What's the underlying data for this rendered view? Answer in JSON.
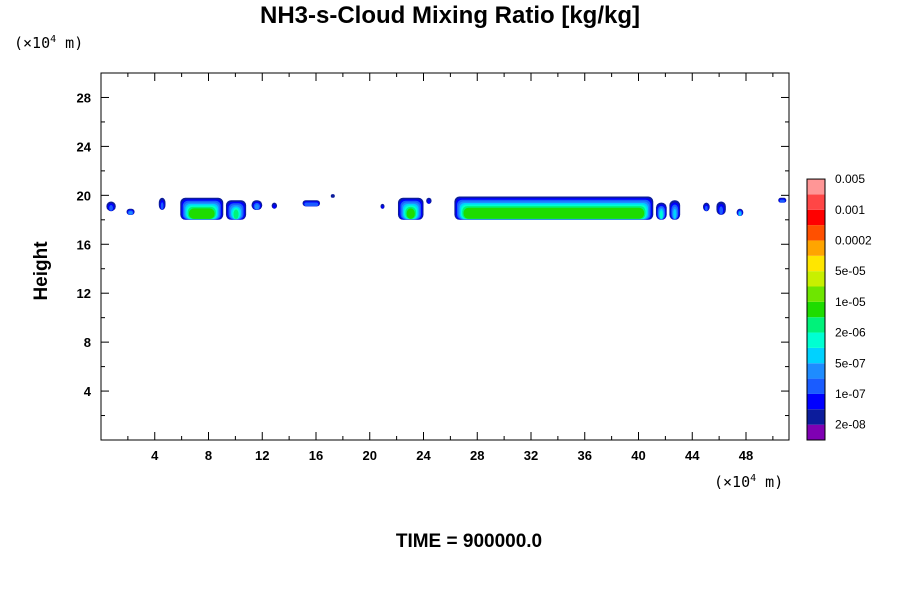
{
  "chart_data": {
    "type": "heatmap",
    "title": "NH3-s-Cloud Mixing Ratio [kg/kg]",
    "ylabel": "Height",
    "y_unit": {
      "prefix": "(×10",
      "exp": "4",
      "suffix": " m)"
    },
    "x_unit": {
      "prefix": "(×10",
      "exp": "4",
      "suffix": " m)"
    },
    "xlim": [
      0,
      51.2
    ],
    "ylim": [
      0,
      30
    ],
    "x_ticks": [
      4,
      8,
      12,
      16,
      20,
      24,
      28,
      32,
      36,
      40,
      44,
      48
    ],
    "y_ticks": [
      4,
      8,
      12,
      16,
      20,
      24,
      28
    ],
    "time_label": "TIME = 900000.0",
    "colorbar": {
      "colors": [
        "#7f00b3",
        "#0c1c9c",
        "#0000ff",
        "#1a5cff",
        "#1e8cff",
        "#00d2ff",
        "#00ffd2",
        "#00f27a",
        "#1edc00",
        "#6ee600",
        "#c8f000",
        "#ffe600",
        "#ffa500",
        "#ff5000",
        "#ff0000",
        "#ff4646",
        "#ff9696"
      ],
      "labels": [
        "2e-08",
        "1e-07",
        "5e-07",
        "2e-06",
        "1e-05",
        "5e-05",
        "0.0002",
        "0.001",
        "0.005"
      ]
    },
    "cloud_clusters": [
      {
        "x": [
          0.4,
          1.1
        ],
        "y": [
          18.7,
          19.5
        ],
        "level": 3
      },
      {
        "x": [
          1.9,
          2.5
        ],
        "y": [
          18.4,
          18.9
        ],
        "level": 4
      },
      {
        "x": [
          4.3,
          4.8
        ],
        "y": [
          18.8,
          19.8
        ],
        "level": 3
      },
      {
        "x": [
          5.9,
          9.1
        ],
        "y": [
          18.0,
          19.8
        ],
        "level": 8
      },
      {
        "x": [
          9.3,
          10.8
        ],
        "y": [
          18.0,
          19.6
        ],
        "level": 7
      },
      {
        "x": [
          11.2,
          12.0
        ],
        "y": [
          18.8,
          19.6
        ],
        "level": 4
      },
      {
        "x": [
          12.7,
          13.1
        ],
        "y": [
          18.9,
          19.4
        ],
        "level": 2
      },
      {
        "x": [
          15.0,
          16.3
        ],
        "y": [
          19.1,
          19.6
        ],
        "level": 3
      },
      {
        "x": [
          17.1,
          17.4
        ],
        "y": [
          19.8,
          20.1
        ],
        "level": 1
      },
      {
        "x": [
          20.8,
          21.1
        ],
        "y": [
          18.9,
          19.3
        ],
        "level": 2
      },
      {
        "x": [
          22.1,
          24.0
        ],
        "y": [
          18.0,
          19.8
        ],
        "level": 8
      },
      {
        "x": [
          24.2,
          24.6
        ],
        "y": [
          19.3,
          19.8
        ],
        "level": 2
      },
      {
        "x": [
          26.3,
          41.1
        ],
        "y": [
          18.0,
          19.9
        ],
        "level": 8
      },
      {
        "x": [
          41.3,
          42.1
        ],
        "y": [
          18.0,
          19.4
        ],
        "level": 6
      },
      {
        "x": [
          42.3,
          43.1
        ],
        "y": [
          18.0,
          19.6
        ],
        "level": 5
      },
      {
        "x": [
          44.8,
          45.3
        ],
        "y": [
          18.7,
          19.4
        ],
        "level": 3
      },
      {
        "x": [
          45.8,
          46.5
        ],
        "y": [
          18.4,
          19.5
        ],
        "level": 3
      },
      {
        "x": [
          47.3,
          47.8
        ],
        "y": [
          18.3,
          18.9
        ],
        "level": 5
      },
      {
        "x": [
          50.4,
          51.0
        ],
        "y": [
          19.4,
          19.8
        ],
        "level": 3
      }
    ]
  }
}
